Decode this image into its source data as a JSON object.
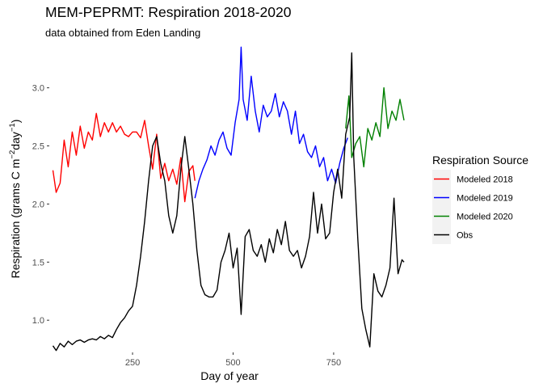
{
  "chart_data": {
    "type": "line",
    "title": "MEM-PEPRMT: Respiration 2018-2020",
    "subtitle": "data obtained from Eden Landing",
    "xlabel": "Day of year",
    "ylabel": {
      "prefix": "Respiration (grams C m",
      "sup1": "−2",
      "mid": "day",
      "sup2": "−1",
      "suffix": ")"
    },
    "xlim": [
      45,
      935
    ],
    "ylim": [
      0.73,
      3.38
    ],
    "xticks": [
      250,
      500,
      750
    ],
    "xtick_labels": [
      "250",
      "500",
      "750"
    ],
    "yticks": [
      1.0,
      1.5,
      2.0,
      2.5,
      3.0
    ],
    "ytick_labels": [
      "1.0",
      "1.5",
      "2.0",
      "2.5",
      "3.0"
    ],
    "grid": false,
    "legend": {
      "title": "Respiration Source",
      "placement": "right"
    },
    "series": [
      {
        "name": "Modeled 2018",
        "color": "#ff0000",
        "x": [
          52,
          60,
          70,
          80,
          90,
          100,
          110,
          120,
          130,
          140,
          150,
          160,
          170,
          180,
          190,
          200,
          210,
          220,
          230,
          240,
          250,
          260,
          270,
          280,
          290,
          300,
          310,
          320,
          330,
          340,
          350,
          360,
          370,
          380,
          390,
          400,
          405
        ],
        "y": [
          2.29,
          2.1,
          2.18,
          2.55,
          2.32,
          2.62,
          2.42,
          2.67,
          2.48,
          2.62,
          2.55,
          2.78,
          2.58,
          2.7,
          2.62,
          2.7,
          2.62,
          2.67,
          2.6,
          2.58,
          2.62,
          2.62,
          2.57,
          2.72,
          2.5,
          2.3,
          2.6,
          2.22,
          2.35,
          2.2,
          2.3,
          2.17,
          2.4,
          2.02,
          2.28,
          2.33,
          2.2
        ]
      },
      {
        "name": "Modeled 2019",
        "color": "#0000ff",
        "x": [
          405,
          415,
          425,
          435,
          445,
          455,
          465,
          475,
          485,
          495,
          505,
          515,
          520,
          525,
          535,
          545,
          555,
          565,
          575,
          585,
          595,
          605,
          615,
          625,
          635,
          645,
          655,
          665,
          675,
          685,
          695,
          705,
          715,
          725,
          735,
          745,
          755,
          765,
          775,
          785
        ],
        "y": [
          2.05,
          2.2,
          2.3,
          2.38,
          2.5,
          2.42,
          2.55,
          2.62,
          2.48,
          2.42,
          2.7,
          2.9,
          3.35,
          2.9,
          2.72,
          3.1,
          2.8,
          2.62,
          2.85,
          2.75,
          2.8,
          2.95,
          2.75,
          2.88,
          2.8,
          2.6,
          2.8,
          2.52,
          2.6,
          2.45,
          2.4,
          2.5,
          2.32,
          2.4,
          2.2,
          2.3,
          2.18,
          2.35,
          2.48,
          2.57
        ]
      },
      {
        "name": "Modeled 2020",
        "color": "#008000",
        "x": [
          780,
          788,
          795,
          805,
          815,
          825,
          835,
          845,
          855,
          865,
          875,
          885,
          895,
          905,
          915,
          925
        ],
        "y": [
          2.65,
          2.93,
          2.4,
          2.52,
          2.58,
          2.32,
          2.65,
          2.55,
          2.7,
          2.58,
          3.0,
          2.65,
          2.8,
          2.72,
          2.9,
          2.72
        ]
      },
      {
        "name": "Obs",
        "color": "#000000",
        "x": [
          52,
          60,
          70,
          80,
          90,
          100,
          110,
          120,
          130,
          140,
          150,
          160,
          170,
          180,
          190,
          200,
          210,
          220,
          230,
          240,
          250,
          260,
          270,
          280,
          290,
          300,
          310,
          320,
          330,
          340,
          350,
          360,
          370,
          380,
          390,
          400,
          410,
          420,
          430,
          440,
          450,
          460,
          470,
          480,
          490,
          500,
          510,
          520,
          530,
          540,
          550,
          560,
          570,
          580,
          590,
          600,
          610,
          620,
          630,
          640,
          650,
          660,
          670,
          680,
          690,
          700,
          710,
          720,
          730,
          740,
          750,
          760,
          770,
          780,
          790,
          795,
          800,
          810,
          820,
          830,
          840,
          850,
          860,
          870,
          880,
          890,
          900,
          910,
          920,
          925
        ],
        "y": [
          0.78,
          0.74,
          0.8,
          0.77,
          0.82,
          0.79,
          0.82,
          0.83,
          0.81,
          0.83,
          0.84,
          0.83,
          0.86,
          0.84,
          0.87,
          0.85,
          0.92,
          0.98,
          1.02,
          1.08,
          1.12,
          1.3,
          1.55,
          1.85,
          2.2,
          2.5,
          2.58,
          2.35,
          2.2,
          1.9,
          1.75,
          1.9,
          2.3,
          2.58,
          2.3,
          2.0,
          1.6,
          1.3,
          1.22,
          1.2,
          1.2,
          1.26,
          1.5,
          1.6,
          1.75,
          1.45,
          1.62,
          1.05,
          1.72,
          1.78,
          1.6,
          1.55,
          1.65,
          1.5,
          1.7,
          1.58,
          1.78,
          1.65,
          1.85,
          1.6,
          1.55,
          1.6,
          1.45,
          1.55,
          1.72,
          2.1,
          1.75,
          2.0,
          1.7,
          1.75,
          2.1,
          2.3,
          2.05,
          2.6,
          2.75,
          3.3,
          2.4,
          1.7,
          1.1,
          0.92,
          0.77,
          1.4,
          1.25,
          1.2,
          1.3,
          1.45,
          2.05,
          1.4,
          1.52,
          1.5
        ]
      }
    ]
  }
}
